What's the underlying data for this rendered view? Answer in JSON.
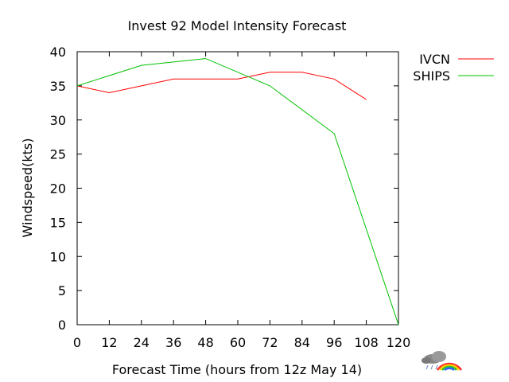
{
  "chart_data": {
    "type": "line",
    "title": "Invest 92 Model Intensity Forecast",
    "xlabel": "Forecast Time  (hours from 12z May 14)",
    "ylabel": "Windspeed(kts)",
    "xlim": [
      0,
      120
    ],
    "ylim": [
      0,
      40
    ],
    "xticks": [
      0,
      12,
      24,
      36,
      48,
      60,
      72,
      84,
      96,
      108,
      120
    ],
    "yticks": [
      0,
      5,
      10,
      15,
      20,
      25,
      30,
      35,
      40
    ],
    "grid": false,
    "legend_position": "right",
    "series": [
      {
        "name": "IVCN",
        "color": "#ff0000",
        "x": [
          0,
          12,
          24,
          36,
          48,
          60,
          72,
          84,
          96,
          108
        ],
        "y": [
          35,
          34,
          35,
          36,
          36,
          36,
          37,
          37,
          36,
          33
        ]
      },
      {
        "name": "SHIPS",
        "color": "#00c000",
        "x": [
          0,
          24,
          48,
          72,
          96,
          120
        ],
        "y": [
          35,
          38,
          39,
          35,
          28,
          0
        ]
      }
    ]
  },
  "logo": {
    "icon": "weather-rainbow-cloud-icon"
  }
}
